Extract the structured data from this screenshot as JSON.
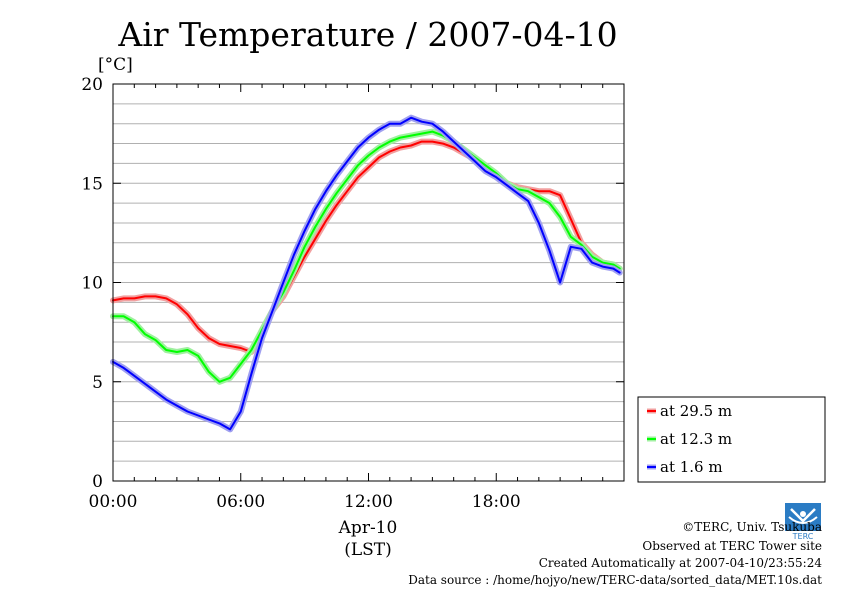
{
  "chart_data": {
    "type": "line",
    "title": "Air Temperature / 2007-04-10",
    "ylabel": "[°C]",
    "xlabel_date": "Apr-10",
    "xlabel_units": "(LST)",
    "xlim": [
      0,
      24
    ],
    "ylim": [
      0,
      20
    ],
    "yticks": [
      "0",
      "5",
      "10",
      "15",
      "20"
    ],
    "xticks": [
      "00:00",
      "06:00",
      "12:00",
      "18:00"
    ],
    "grid": "horizontal",
    "legend_position": "lower-right-outside",
    "series": [
      {
        "name": "at 29.5 m",
        "color": "#ff0000",
        "glow": "#f2a0a0",
        "x": [
          0,
          0.5,
          1,
          1.5,
          2,
          2.5,
          3,
          3.5,
          4,
          4.5,
          5,
          5.5,
          6,
          6.5,
          7,
          7.5,
          8,
          8.5,
          9,
          9.5,
          10,
          10.5,
          11,
          11.5,
          12,
          12.5,
          13,
          13.5,
          14,
          14.5,
          15,
          15.5,
          16,
          16.5,
          17,
          17.5,
          18,
          18.5,
          19,
          19.5,
          20,
          20.5,
          21,
          21.5,
          22,
          22.5,
          23,
          23.5,
          23.8
        ],
        "y": [
          9.1,
          9.2,
          9.2,
          9.3,
          9.3,
          9.2,
          8.9,
          8.4,
          7.7,
          7.2,
          6.9,
          6.8,
          6.7,
          6.5,
          7.6,
          8.6,
          9.3,
          10.3,
          11.3,
          12.2,
          13.1,
          13.9,
          14.6,
          15.3,
          15.8,
          16.3,
          16.6,
          16.8,
          16.9,
          17.1,
          17.1,
          17.0,
          16.8,
          16.5,
          16.2,
          15.9,
          15.4,
          15.0,
          14.8,
          14.7,
          14.6,
          14.6,
          14.4,
          13.2,
          12.0,
          11.4,
          11.0,
          10.9,
          10.7
        ]
      },
      {
        "name": "at 12.3 m",
        "color": "#00ff00",
        "glow": "#a0f0a0",
        "x": [
          0,
          0.5,
          1,
          1.5,
          2,
          2.5,
          3,
          3.5,
          4,
          4.5,
          5,
          5.5,
          6,
          6.5,
          7,
          7.5,
          8,
          8.5,
          9,
          9.5,
          10,
          10.5,
          11,
          11.5,
          12,
          12.5,
          13,
          13.5,
          14,
          14.5,
          15,
          15.5,
          16,
          16.5,
          17,
          17.5,
          18,
          18.5,
          19,
          19.5,
          20,
          20.5,
          21,
          21.5,
          22,
          22.5,
          23,
          23.5,
          23.8
        ],
        "y": [
          8.3,
          8.3,
          8.0,
          7.4,
          7.1,
          6.6,
          6.5,
          6.6,
          6.3,
          5.5,
          5.0,
          5.2,
          5.9,
          6.6,
          7.6,
          8.6,
          9.5,
          10.6,
          11.8,
          12.8,
          13.7,
          14.5,
          15.2,
          15.9,
          16.4,
          16.8,
          17.1,
          17.3,
          17.4,
          17.5,
          17.6,
          17.4,
          17.1,
          16.7,
          16.3,
          15.9,
          15.5,
          15.0,
          14.7,
          14.6,
          14.3,
          14.0,
          13.3,
          12.3,
          11.9,
          11.3,
          11.0,
          10.9,
          10.7
        ]
      },
      {
        "name": "at 1.6 m",
        "color": "#0000ff",
        "glow": "#a0a0f0",
        "x": [
          0,
          0.5,
          1,
          1.5,
          2,
          2.5,
          3,
          3.5,
          4,
          4.5,
          5,
          5.5,
          6,
          6.5,
          7,
          7.5,
          8,
          8.5,
          9,
          9.5,
          10,
          10.5,
          11,
          11.5,
          12,
          12.5,
          13,
          13.5,
          14,
          14.5,
          15,
          15.5,
          16,
          16.5,
          17,
          17.5,
          18,
          18.5,
          19,
          19.5,
          20,
          20.5,
          21,
          21.5,
          22,
          22.5,
          23,
          23.5,
          23.8
        ],
        "y": [
          6.0,
          5.7,
          5.3,
          4.9,
          4.5,
          4.1,
          3.8,
          3.5,
          3.3,
          3.1,
          2.9,
          2.6,
          3.5,
          5.4,
          7.2,
          8.6,
          10.0,
          11.4,
          12.6,
          13.7,
          14.6,
          15.4,
          16.1,
          16.8,
          17.3,
          17.7,
          18.0,
          18.0,
          18.3,
          18.1,
          18.0,
          17.6,
          17.1,
          16.6,
          16.1,
          15.6,
          15.3,
          14.9,
          14.5,
          14.1,
          13.0,
          11.6,
          10.0,
          11.8,
          11.7,
          11.0,
          10.8,
          10.7,
          10.5
        ]
      }
    ]
  },
  "footer": {
    "copyright": "©TERC, Univ. Tsukuba",
    "observed": "Observed at TERC Tower site",
    "created": "Created Automatically at 2007-04-10/23:55:24",
    "source": "Data source : /home/hojyo/new/TERC-data/sorted_data/MET.10s.dat",
    "logo_text": "TERC"
  }
}
